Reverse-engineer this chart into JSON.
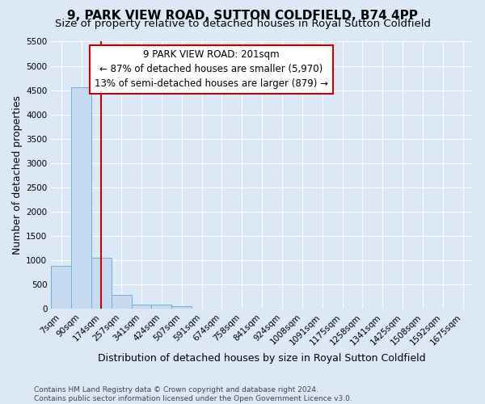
{
  "title_line1": "9, PARK VIEW ROAD, SUTTON COLDFIELD, B74 4PP",
  "title_line2": "Size of property relative to detached houses in Royal Sutton Coldfield",
  "xlabel": "Distribution of detached houses by size in Royal Sutton Coldfield",
  "ylabel": "Number of detached properties",
  "footer_line1": "Contains HM Land Registry data © Crown copyright and database right 2024.",
  "footer_line2": "Contains public sector information licensed under the Open Government Licence v3.0.",
  "bin_labels": [
    "7sqm",
    "90sqm",
    "174sqm",
    "257sqm",
    "341sqm",
    "424sqm",
    "507sqm",
    "591sqm",
    "674sqm",
    "758sqm",
    "841sqm",
    "924sqm",
    "1008sqm",
    "1091sqm",
    "1175sqm",
    "1258sqm",
    "1341sqm",
    "1425sqm",
    "1508sqm",
    "1592sqm",
    "1675sqm"
  ],
  "bar_values": [
    880,
    4560,
    1060,
    285,
    80,
    80,
    50,
    0,
    0,
    0,
    0,
    0,
    0,
    0,
    0,
    0,
    0,
    0,
    0,
    0,
    0
  ],
  "bar_color": "#c5d9f0",
  "bar_edge_color": "#6baed6",
  "ylim": [
    0,
    5500
  ],
  "yticks": [
    0,
    500,
    1000,
    1500,
    2000,
    2500,
    3000,
    3500,
    4000,
    4500,
    5000,
    5500
  ],
  "vline_x": 2.0,
  "vline_color": "#cc0000",
  "annotation_line1": "9 PARK VIEW ROAD: 201sqm",
  "annotation_line2": "← 87% of detached houses are smaller (5,970)",
  "annotation_line3": "13% of semi-detached houses are larger (879) →",
  "annotation_box_color": "#ffffff",
  "annotation_box_edge": "#cc0000",
  "background_color": "#dce8f5",
  "plot_bg_color": "#dce8f5",
  "grid_color": "#ffffff",
  "title_fontsize": 11,
  "subtitle_fontsize": 9.5,
  "axis_label_fontsize": 9,
  "tick_fontsize": 7.5,
  "annotation_fontsize": 8.5,
  "footer_fontsize": 6.5
}
